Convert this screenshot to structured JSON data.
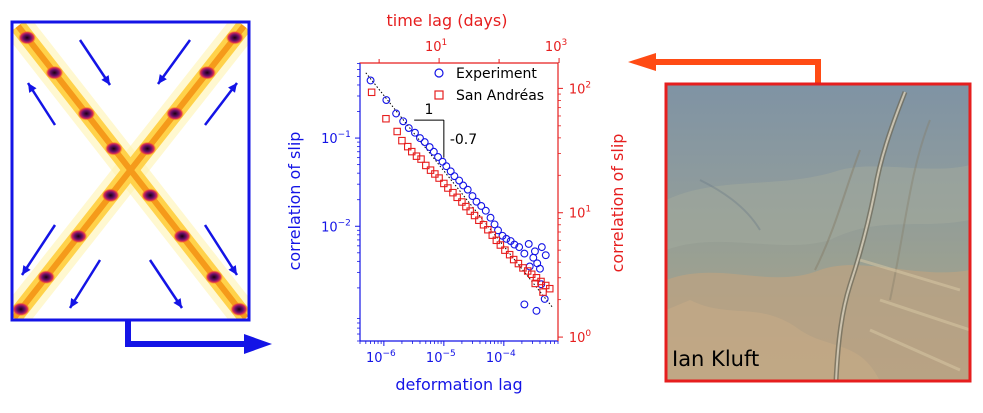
{
  "colors": {
    "blue": "#1414e6",
    "red": "#e61e1e",
    "arrow_orange": "#ff4b14",
    "photo_border": "#e61e1e"
  },
  "left_panel": {
    "description_icon_names": [
      "x-shaped-shear-bands-heatmap",
      "compression-arrow-icon",
      "extension-arrow-icon",
      "flow-arrow-icon"
    ]
  },
  "photo": {
    "credit": "Ian Kluft"
  },
  "chart_data": {
    "type": "scatter",
    "title": "",
    "x_bottom": {
      "label": "deformation lag",
      "scale": "log",
      "range": [
        4e-07,
        0.0008
      ],
      "ticks": [
        {
          "value": 1e-06,
          "base": "10",
          "exp": "−6"
        },
        {
          "value": 1e-05,
          "base": "10",
          "exp": "−5"
        },
        {
          "value": 0.0001,
          "base": "10",
          "exp": "−4"
        }
      ]
    },
    "x_top": {
      "label": "time lag (days)",
      "scale": "log",
      "range": [
        0.48,
        960
      ],
      "ticks": [
        {
          "value": 10,
          "base": "10",
          "exp": "1"
        },
        {
          "value": 1000,
          "base": "10",
          "exp": "3"
        }
      ]
    },
    "y_left": {
      "label": "correlation of slip",
      "scale": "log",
      "range": [
        0.0005,
        0.71
      ],
      "ticks": [
        {
          "value": 0.1,
          "base": "10",
          "exp": "−1"
        },
        {
          "value": 0.01,
          "base": "10",
          "exp": "−2"
        }
      ]
    },
    "y_right": {
      "label": "correlation of slip",
      "scale": "log",
      "range": [
        0.93,
        160
      ],
      "ticks": [
        {
          "value": 100,
          "base": "10",
          "exp": "2"
        },
        {
          "value": 10,
          "base": "10",
          "exp": "1"
        },
        {
          "value": 1,
          "base": "10",
          "exp": "0"
        }
      ]
    },
    "legend": {
      "position": "top-right",
      "entries": [
        {
          "label": "Experiment",
          "marker": "circle",
          "color": "#1414e6"
        },
        {
          "label": "San Andréas",
          "marker": "square",
          "color": "#e61e1e"
        }
      ]
    },
    "annotation": {
      "run_label": "1",
      "slope_label": "-0.7"
    },
    "series": [
      {
        "name": "Experiment",
        "axes": "bottom-left",
        "marker": "circle",
        "color": "#1414e6",
        "points": [
          [
            6e-07,
            0.45
          ],
          [
            1.1e-06,
            0.27
          ],
          [
            1.6e-06,
            0.19
          ],
          [
            2.1e-06,
            0.155
          ],
          [
            2.6e-06,
            0.13
          ],
          [
            3.3e-06,
            0.115
          ],
          [
            4e-06,
            0.1
          ],
          [
            4.8e-06,
            0.09
          ],
          [
            5.8e-06,
            0.079
          ],
          [
            6.8e-06,
            0.07
          ],
          [
            8e-06,
            0.061
          ],
          [
            9.5e-06,
            0.054
          ],
          [
            1.1e-05,
            0.048
          ],
          [
            1.3e-05,
            0.042
          ],
          [
            1.5e-05,
            0.037
          ],
          [
            1.8e-05,
            0.033
          ],
          [
            2.1e-05,
            0.029
          ],
          [
            2.5e-05,
            0.026
          ],
          [
            3e-05,
            0.022
          ],
          [
            3.5e-05,
            0.019
          ],
          [
            4.2e-05,
            0.017
          ],
          [
            5e-05,
            0.015
          ],
          [
            6e-05,
            0.0125
          ],
          [
            7e-05,
            0.0105
          ],
          [
            8e-05,
            0.009
          ],
          [
            9.5e-05,
            0.0078
          ],
          [
            0.00011,
            0.0072
          ],
          [
            0.00013,
            0.0068
          ],
          [
            0.00015,
            0.0062
          ],
          [
            0.00018,
            0.0058
          ],
          [
            0.00022,
            0.0049
          ],
          [
            0.00026,
            0.0063
          ],
          [
            0.00031,
            0.0044
          ],
          [
            0.00036,
            0.0038
          ],
          [
            0.00043,
            0.0058
          ],
          [
            0.0005,
            0.0047
          ],
          [
            0.00027,
            0.0035
          ],
          [
            0.00033,
            0.0052
          ],
          [
            0.0004,
            0.0033
          ],
          [
            0.00022,
            0.0013
          ],
          [
            0.00035,
            0.0011
          ],
          [
            0.00048,
            0.0015
          ],
          [
            0.00042,
            0.0022
          ]
        ]
      },
      {
        "name": "San Andréas",
        "axes": "top-right",
        "marker": "square",
        "color": "#e61e1e",
        "points": [
          [
            0.75,
            93
          ],
          [
            1.3,
            57
          ],
          [
            2,
            45
          ],
          [
            2.4,
            38
          ],
          [
            3,
            34
          ],
          [
            3.5,
            31
          ],
          [
            4.2,
            28.5
          ],
          [
            5,
            27
          ],
          [
            6,
            24
          ],
          [
            7.2,
            22
          ],
          [
            8.5,
            20.5
          ],
          [
            10,
            19
          ],
          [
            12,
            17.2
          ],
          [
            14,
            15.8
          ],
          [
            17,
            14.5
          ],
          [
            20,
            13.3
          ],
          [
            24,
            12.2
          ],
          [
            28,
            11.2
          ],
          [
            33,
            10.3
          ],
          [
            39,
            9.5
          ],
          [
            46,
            8.7
          ],
          [
            55,
            8
          ],
          [
            65,
            7.3
          ],
          [
            77,
            6.6
          ],
          [
            90,
            6
          ],
          [
            105,
            5.5
          ],
          [
            125,
            5
          ],
          [
            150,
            4.6
          ],
          [
            175,
            4.2
          ],
          [
            210,
            3.9
          ],
          [
            250,
            3.6
          ],
          [
            300,
            3.4
          ],
          [
            350,
            3.2
          ],
          [
            420,
            3
          ],
          [
            500,
            2.8
          ],
          [
            600,
            2.6
          ],
          [
            700,
            2.45
          ],
          [
            400,
            2.7
          ],
          [
            540,
            2.3
          ]
        ]
      }
    ]
  }
}
